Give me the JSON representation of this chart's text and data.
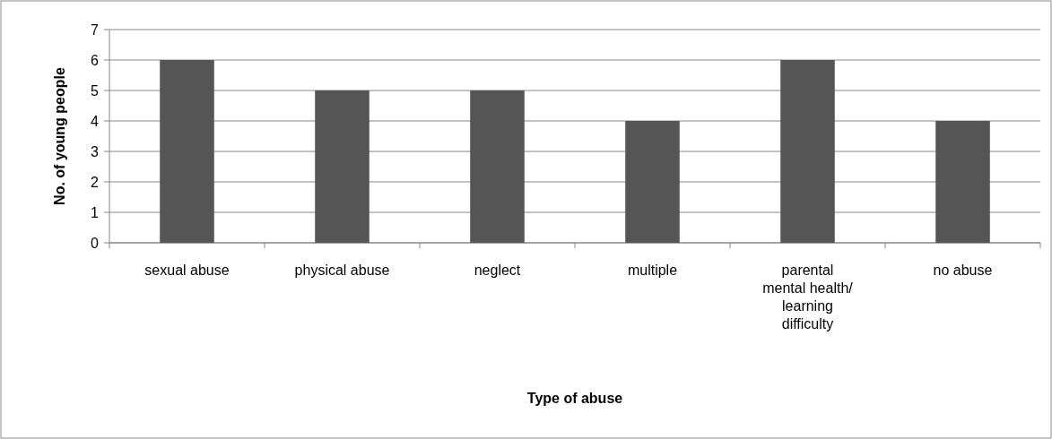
{
  "chart_data": {
    "type": "bar",
    "xlabel": "Type of abuse",
    "ylabel": "No. of young people",
    "categories": [
      "sexual abuse",
      "physical abuse",
      "neglect",
      "multiple",
      "parental mental health/ learning difficulty",
      "no abuse"
    ],
    "values": [
      6,
      5,
      5,
      4,
      6,
      4
    ],
    "color": "#555555",
    "ylim": [
      0,
      7
    ],
    "yticks": [
      0,
      1,
      2,
      3,
      4,
      5,
      6,
      7
    ],
    "grid": "y"
  }
}
